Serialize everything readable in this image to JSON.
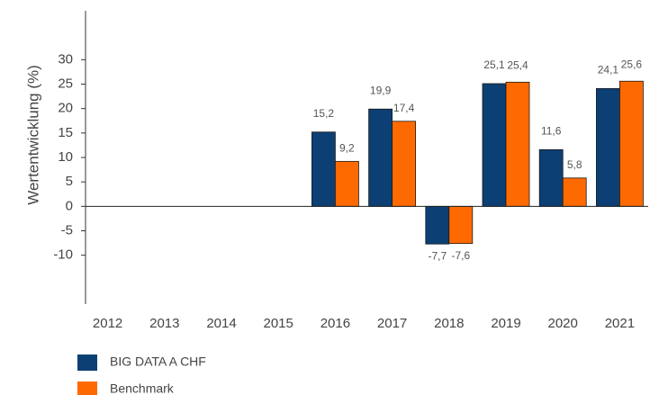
{
  "chart_data": {
    "type": "bar",
    "ylabel": "Wertentwicklung (%)",
    "categories": [
      "2012",
      "2013",
      "2014",
      "2015",
      "2016",
      "2017",
      "2018",
      "2019",
      "2020",
      "2021"
    ],
    "series": [
      {
        "name": "BIG DATA A CHF",
        "color": "#0c3f74",
        "values": [
          null,
          null,
          null,
          null,
          15.2,
          19.9,
          -7.7,
          25.1,
          11.6,
          24.1
        ],
        "value_labels": [
          null,
          null,
          null,
          null,
          "15,2",
          "19,9",
          "-7,7",
          "25,1",
          "11,6",
          "24,1"
        ]
      },
      {
        "name": "Benchmark",
        "color": "#ff6a00",
        "values": [
          null,
          null,
          null,
          null,
          9.2,
          17.4,
          -7.6,
          25.4,
          5.8,
          25.6
        ],
        "value_labels": [
          null,
          null,
          null,
          null,
          "9,2",
          "17,4",
          "-7,6",
          "25,4",
          "5,8",
          "25,6"
        ]
      }
    ],
    "ylim": [
      -20,
      40
    ],
    "yticks": [
      -10,
      -5,
      0,
      5,
      10,
      15,
      20,
      25,
      30
    ],
    "grid": false
  }
}
